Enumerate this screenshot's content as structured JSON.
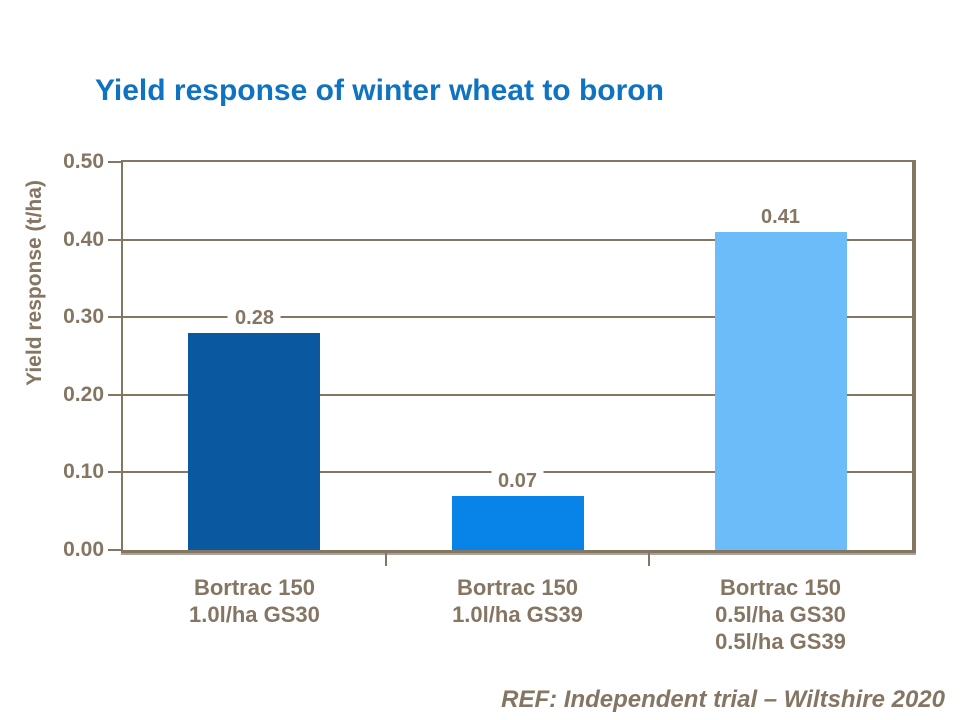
{
  "footer": {
    "reference": "REF: Independent trial – Wiltshire 2020"
  },
  "colors": {
    "title_text": "#0F73C2",
    "axis_text": "#857663",
    "gridlines": "#857663",
    "plot_shadow": "#A9A29A",
    "bar_colors": [
      "#0A58A0",
      "#0884E8",
      "#6CBCFA"
    ]
  },
  "chart_data": {
    "type": "bar",
    "title": "Yield response of winter wheat to boron",
    "xlabel": "",
    "ylabel": "Yield response (t/ha)",
    "ylim": [
      0,
      0.5
    ],
    "yticks": [
      0,
      0.1,
      0.2,
      0.3,
      0.4,
      0.5
    ],
    "ytick_labels": [
      "0.00",
      "0.10",
      "0.20",
      "0.30",
      "0.40",
      "0.50"
    ],
    "categories": [
      [
        "Bortrac 150",
        "1.0l/ha GS30"
      ],
      [
        "Bortrac 150",
        "1.0l/ha GS39"
      ],
      [
        "Bortrac 150",
        "0.5l/ha GS30",
        "0.5l/ha GS39"
      ]
    ],
    "values": [
      0.28,
      0.07,
      0.41
    ],
    "value_labels": [
      "0.28",
      "0.07",
      "0.41"
    ],
    "grid": true,
    "legend": false
  }
}
